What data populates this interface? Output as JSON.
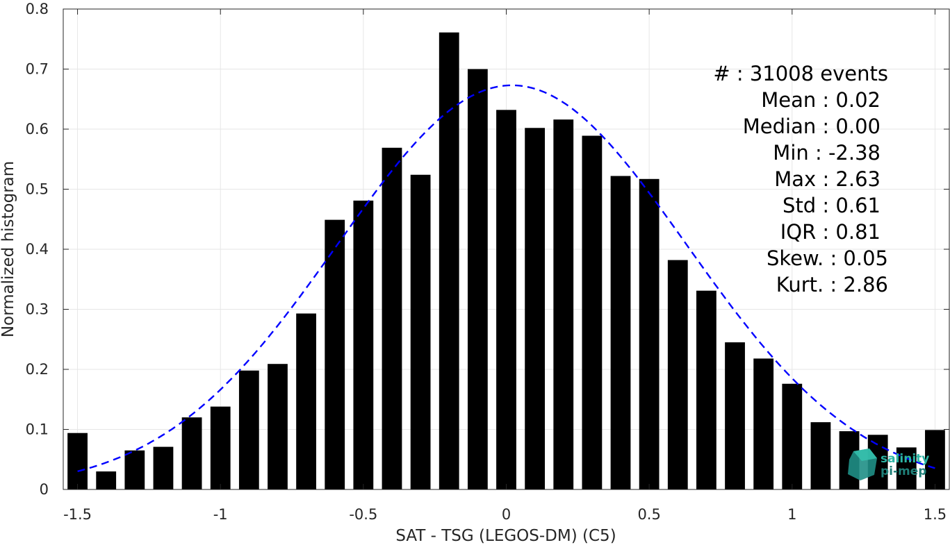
{
  "chart_data": {
    "type": "bar",
    "xlabel": "SAT - TSG (LEGOS-DM) (C5)",
    "ylabel": "Normalized histogram",
    "xlim": [
      -1.55,
      1.55
    ],
    "ylim": [
      0,
      0.8
    ],
    "grid": true,
    "x_ticks": [
      "-1.5",
      "-1",
      "-0.5",
      "0",
      "0.5",
      "1",
      "1.5"
    ],
    "x_tick_values": [
      -1.5,
      -1,
      -0.5,
      0,
      0.5,
      1,
      1.5
    ],
    "y_ticks": [
      "0",
      "0.1",
      "0.2",
      "0.3",
      "0.4",
      "0.5",
      "0.6",
      "0.7",
      "0.8"
    ],
    "y_tick_values": [
      0,
      0.1,
      0.2,
      0.3,
      0.4,
      0.5,
      0.6,
      0.7,
      0.8
    ],
    "bin_width": 0.1,
    "x": [
      -1.5,
      -1.4,
      -1.3,
      -1.2,
      -1.1,
      -1.0,
      -0.9,
      -0.8,
      -0.7,
      -0.6,
      -0.5,
      -0.4,
      -0.3,
      -0.2,
      -0.1,
      0.0,
      0.1,
      0.2,
      0.3,
      0.4,
      0.5,
      0.6,
      0.7,
      0.8,
      0.9,
      1.0,
      1.1,
      1.2,
      1.3,
      1.4,
      1.5
    ],
    "values": [
      0.094,
      0.03,
      0.065,
      0.071,
      0.12,
      0.138,
      0.198,
      0.209,
      0.293,
      0.449,
      0.481,
      0.569,
      0.524,
      0.761,
      0.7,
      0.632,
      0.602,
      0.616,
      0.589,
      0.522,
      0.517,
      0.382,
      0.331,
      0.245,
      0.218,
      0.176,
      0.112,
      0.097,
      0.091,
      0.07,
      0.099
    ],
    "bar_color": "#000000",
    "fit_curve": {
      "style": "dashed",
      "color": "#0000ff",
      "mean": 0.02,
      "std": 0.61,
      "peak": 0.673,
      "x_range": [
        -1.5,
        1.5
      ]
    },
    "stats": [
      "#  : 31008 events",
      "Mean : 0.02",
      "Median : 0.00",
      "Min : -2.38",
      "Max : 2.63",
      "Std : 0.61",
      "IQR : 0.81",
      "Skew. : 0.05",
      "Kurt. : 2.86"
    ]
  },
  "logo": {
    "line1": "salinity",
    "line2": "pi-mep",
    "color1": "#2bb5a4",
    "color2": "#1f7f78"
  }
}
